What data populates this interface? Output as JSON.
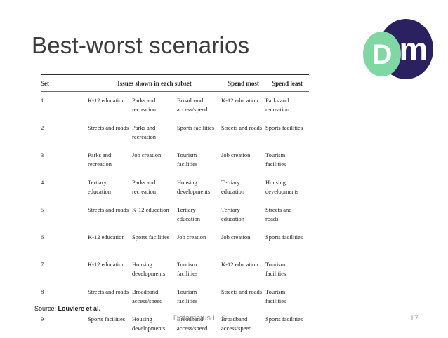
{
  "slide": {
    "title": "Best-worst scenarios",
    "source": {
      "label": "Source:",
      "value": "Louviere et al."
    },
    "footer": {
      "company": "Datamotus LLC",
      "page_number": "17"
    }
  },
  "logo": {
    "name": "DM logo",
    "letters": {
      "d": "D",
      "m": "m"
    },
    "colors": {
      "navy": "#2b2060",
      "green": "#7fd7a4",
      "letter": "#ffffff"
    }
  },
  "table": {
    "headers": {
      "set": "Set",
      "issues": "Issues shown in each subset",
      "spend_most": "Spend most",
      "spend_least": "Spend least"
    },
    "rows": [
      {
        "set": "1",
        "issues": [
          "K-12 education",
          "Parks and recreation",
          "Broadband access/speed"
        ],
        "spend_most": "K-12 education",
        "spend_least": "Parks and recreation"
      },
      {
        "set": "2",
        "issues": [
          "Streets and roads",
          "Parks and recreation",
          "Sports facilities"
        ],
        "spend_most": "Streets and roads",
        "spend_least": "Sports facilities"
      },
      {
        "set": "3",
        "issues": [
          "Parks and recreation",
          "Job creation",
          "Tourism facilities"
        ],
        "spend_most": "Job creation",
        "spend_least": "Tourism facilities"
      },
      {
        "set": "4",
        "issues": [
          "Tertiary education",
          "Parks and recreation",
          "Housing developments"
        ],
        "spend_most": "Tertiary education",
        "spend_least": "Housing developments"
      },
      {
        "set": "5",
        "issues": [
          "Streets and roads",
          "K-12 education",
          "Tertiary education"
        ],
        "spend_most": "Tertiary education",
        "spend_least": "Streets and roads"
      },
      {
        "set": "6",
        "issues": [
          "K-12 education",
          "Sports facilities",
          "Job creation"
        ],
        "spend_most": "Job creation",
        "spend_least": "Sports facilities"
      },
      {
        "set": "7",
        "issues": [
          "K-12 education",
          "Housing developments",
          "Tourism facilities"
        ],
        "spend_most": "K-12 education",
        "spend_least": "Tourism facilities"
      },
      {
        "set": "8",
        "issues": [
          "Streets and roads",
          "Broadband access/speed",
          "Tourism facilities"
        ],
        "spend_most": "Streets and roads",
        "spend_least": "Tourism facilities"
      },
      {
        "set": "9",
        "issues": [
          "Sports facilities",
          "Housing developments",
          "Broadband access/speed"
        ],
        "spend_most": "Broadband access/speed",
        "spend_least": "Sports facilities"
      }
    ]
  }
}
